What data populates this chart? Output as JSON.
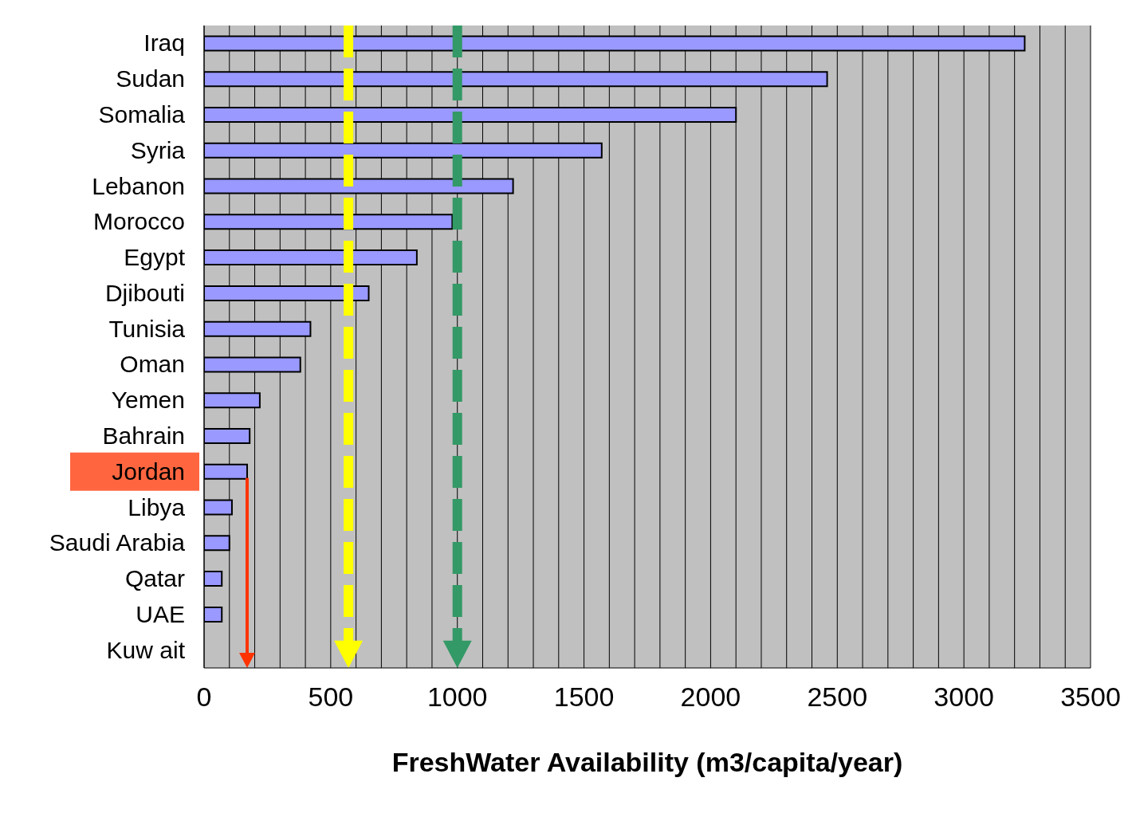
{
  "chart_data": {
    "type": "bar",
    "orientation": "horizontal",
    "xlabel": "FreshWater Availability (m3/capita/year)",
    "categories": [
      "Iraq",
      "Sudan",
      "Somalia",
      "Syria",
      "Lebanon",
      "Morocco",
      "Egypt",
      "Djibouti",
      "Tunisia",
      "Oman",
      "Yemen",
      "Bahrain",
      "Jordan",
      "Libya",
      "Saudi Arabia",
      "Qatar",
      "UAE",
      "Kuw ait"
    ],
    "values": [
      3240,
      2460,
      2100,
      1570,
      1220,
      980,
      840,
      650,
      420,
      380,
      220,
      180,
      170,
      110,
      100,
      70,
      70,
      0
    ],
    "color": "#9999ff",
    "xlim": [
      0,
      3500
    ],
    "xticks": [
      0,
      {
        "value": 100,
        "label": null
      },
      {
        "value": 200,
        "label": null
      },
      {
        "value": 300,
        "label": null
      },
      {
        "value": 400,
        "label": null
      },
      500,
      {
        "value": 600,
        "label": null
      },
      {
        "value": 700,
        "label": null
      },
      {
        "value": 800,
        "label": null
      },
      {
        "value": 900,
        "label": null
      },
      1000,
      {
        "value": 1100,
        "label": null
      },
      {
        "value": 1200,
        "label": null
      },
      {
        "value": 1300,
        "label": null
      },
      {
        "value": 1400,
        "label": null
      },
      1500,
      {
        "value": 1600,
        "label": null
      },
      {
        "value": 1700,
        "label": null
      },
      {
        "value": 1800,
        "label": null
      },
      {
        "value": 1900,
        "label": null
      },
      2000,
      {
        "value": 2100,
        "label": null
      },
      {
        "value": 2200,
        "label": null
      },
      {
        "value": 2300,
        "label": null
      },
      {
        "value": 2400,
        "label": null
      },
      2500,
      {
        "value": 2600,
        "label": null
      },
      {
        "value": 2700,
        "label": null
      },
      {
        "value": 2800,
        "label": null
      },
      {
        "value": 2900,
        "label": null
      },
      3000,
      {
        "value": 3100,
        "label": null
      },
      {
        "value": 3200,
        "label": null
      },
      {
        "value": 3300,
        "label": null
      },
      {
        "value": 3400,
        "label": null
      },
      3500
    ],
    "grid": "x",
    "ref_lines": [
      {
        "axis": "x",
        "value": 570,
        "color": "#ffff00",
        "line_style": "dashed"
      },
      {
        "axis": "x",
        "value": 1000,
        "color": "#339966",
        "line_style": "dashed"
      },
      {
        "axis": "x",
        "value": 170,
        "color": "#ff3300",
        "line_style": "solid"
      }
    ]
  }
}
